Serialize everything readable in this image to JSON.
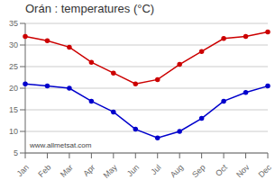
{
  "chart_data": {
    "type": "line",
    "title": "Orán : temperatures (°C)",
    "categories": [
      "Jan",
      "Feb",
      "Mar",
      "Apr",
      "May",
      "Jun",
      "Jul",
      "Aug",
      "Sep",
      "Oct",
      "Nov",
      "Dec"
    ],
    "series": [
      {
        "color": "#cc0000",
        "values": [
          32,
          31,
          29.5,
          26,
          23.5,
          21,
          22,
          25.5,
          28.5,
          31.5,
          32,
          33
        ]
      },
      {
        "color": "#0000cc",
        "values": [
          21,
          20.5,
          20,
          17,
          14.5,
          10.5,
          8.5,
          10,
          13,
          17,
          19,
          20.5
        ]
      }
    ],
    "ylim": [
      5,
      35
    ],
    "yticks": [
      5,
      10,
      15,
      20,
      25,
      30,
      35
    ],
    "grid": "y",
    "marker": "circle",
    "annotations": [
      "www.allmetsat.com"
    ]
  }
}
